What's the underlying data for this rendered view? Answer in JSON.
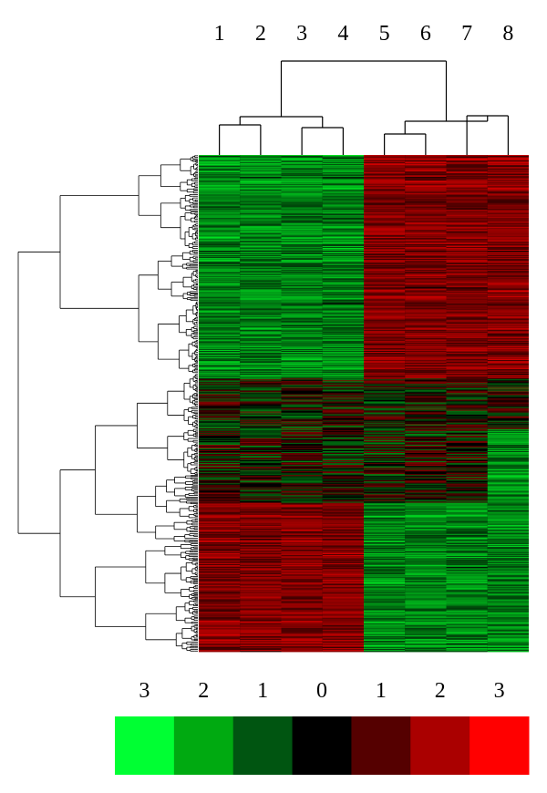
{
  "chart_data": {
    "type": "heatmap",
    "title": "",
    "xlabel": "",
    "ylabel": "",
    "columns": [
      "1",
      "2",
      "3",
      "4",
      "5",
      "6",
      "7",
      "8"
    ],
    "column_clusters": [
      {
        "members": [
          "1",
          "2"
        ]
      },
      {
        "members": [
          "3",
          "4"
        ]
      },
      {
        "members": [
          "1",
          "2",
          "3",
          "4"
        ]
      },
      {
        "members": [
          "5",
          "6"
        ]
      },
      {
        "members": [
          "7",
          "8"
        ]
      },
      {
        "members": [
          "5",
          "6",
          "7",
          "8"
        ]
      },
      {
        "members": [
          "1",
          "2",
          "3",
          "4",
          "5",
          "6",
          "7",
          "8"
        ]
      }
    ],
    "row_dendrogram": true,
    "row_count_approx": 540,
    "row_pattern_by_section": [
      {
        "rows_fraction": [
          0.0,
          0.45
        ],
        "group_1_4": "green",
        "group_5_8": "red"
      },
      {
        "rows_fraction": [
          0.45,
          0.7
        ],
        "group_1_4": "mixed",
        "group_5_8": "mixed"
      },
      {
        "rows_fraction": [
          0.7,
          1.0
        ],
        "group_1_4": "red",
        "group_5_8": "green"
      }
    ],
    "color_scale": {
      "labels": [
        "3",
        "2",
        "1",
        "0",
        "1",
        "2",
        "3"
      ],
      "colors": [
        "#00ff33",
        "#00aa11",
        "#005511",
        "#000000",
        "#550000",
        "#aa0000",
        "#ff0000"
      ]
    },
    "grid": false,
    "legend": "bottom"
  }
}
